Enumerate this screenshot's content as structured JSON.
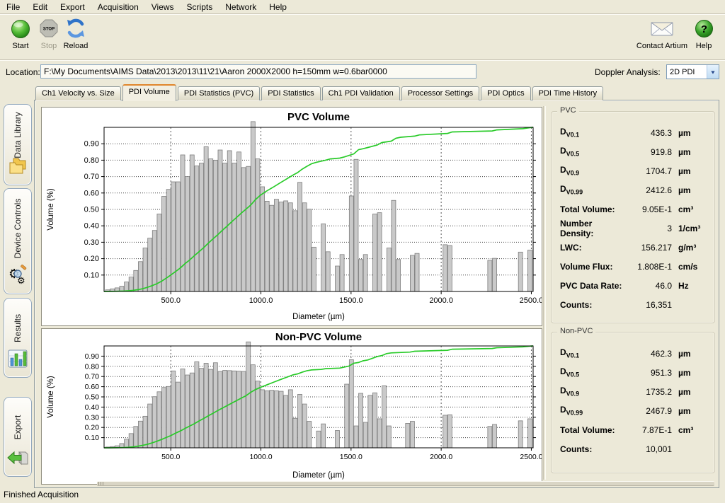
{
  "menu": {
    "items": [
      "File",
      "Edit",
      "Export",
      "Acquisition",
      "Views",
      "Scripts",
      "Network",
      "Help"
    ]
  },
  "toolbar": {
    "start_label": "Start",
    "stop_label": "Stop",
    "reload_label": "Reload",
    "contact_label": "Contact Artium",
    "help_label": "Help",
    "stop_icon_text": "STOP",
    "help_icon_text": "?"
  },
  "location": {
    "label": "Location:",
    "value": "F:\\My Documents\\AIMS Data\\2013\\2013\\11\\21\\Aaron 2000X2000  h=150mm w=0.6bar0000"
  },
  "doppler": {
    "label": "Doppler Analysis:",
    "value": "2D PDI"
  },
  "tabs": {
    "active_index": 1,
    "items": [
      "Ch1 Velocity vs. Size",
      "PDI Volume",
      "PDI Statistics (PVC)",
      "PDI Statistics",
      "Ch1 PDI Validation",
      "Processor Settings",
      "PDI Optics",
      "PDI Time History"
    ]
  },
  "sidebar": {
    "items": [
      {
        "label": "Data Library",
        "icon": "folders-icon"
      },
      {
        "label": "Device Controls",
        "icon": "gears-magnifier-icon"
      },
      {
        "label": "Results",
        "icon": "bar-chart-icon"
      },
      {
        "label": "Export",
        "icon": "green-arrow-box-icon"
      }
    ]
  },
  "panels": {
    "pvc": {
      "title": "PVC",
      "rows": [
        {
          "key": "dv01",
          "label": "D",
          "sub": "V0.1",
          "value": "436.3",
          "unit": "µm"
        },
        {
          "key": "dv05",
          "label": "D",
          "sub": "V0.5",
          "value": "919.8",
          "unit": "µm"
        },
        {
          "key": "dv09",
          "label": "D",
          "sub": "V0.9",
          "value": "1704.7",
          "unit": "µm"
        },
        {
          "key": "dv099",
          "label": "D",
          "sub": "V0.99",
          "value": "2412.6",
          "unit": "µm"
        },
        {
          "key": "total-volume",
          "label": "Total Volume:",
          "value": "9.05E-1",
          "unit": "cm³"
        },
        {
          "key": "number-density",
          "label": "Number Density:",
          "value": "3",
          "unit": "1/cm³"
        },
        {
          "key": "lwc",
          "label": "LWC:",
          "value": "156.217",
          "unit": "g/m³"
        },
        {
          "key": "volume-flux",
          "label": "Volume Flux:",
          "value": "1.808E-1",
          "unit": "cm/s"
        },
        {
          "key": "pvc-data-rate",
          "label": "PVC Data Rate:",
          "value": "46.0",
          "unit": "Hz"
        },
        {
          "key": "counts",
          "label": "Counts:",
          "value": "16,351",
          "unit": ""
        }
      ]
    },
    "non_pvc": {
      "title": "Non-PVC",
      "rows": [
        {
          "key": "dv01",
          "label": "D",
          "sub": "V0.1",
          "value": "462.3",
          "unit": "µm"
        },
        {
          "key": "dv05",
          "label": "D",
          "sub": "V0.5",
          "value": "951.3",
          "unit": "µm"
        },
        {
          "key": "dv09",
          "label": "D",
          "sub": "V0.9",
          "value": "1735.2",
          "unit": "µm"
        },
        {
          "key": "dv099",
          "label": "D",
          "sub": "V0.99",
          "value": "2467.9",
          "unit": "µm"
        },
        {
          "key": "total-volume",
          "label": "Total Volume:",
          "value": "7.87E-1",
          "unit": "cm³"
        },
        {
          "key": "counts",
          "label": "Counts:",
          "value": "10,001",
          "unit": ""
        }
      ]
    }
  },
  "chart_data": [
    {
      "type": "bar",
      "title": "PVC Volume",
      "xlabel": "Diameter (µm)",
      "ylabel": "Volume (%)",
      "xlim": [
        130,
        2510
      ],
      "ylim": [
        0,
        1.0
      ],
      "xticks": [
        500,
        1000,
        1500,
        2000,
        2500
      ],
      "xtick_labels": [
        "500.0",
        "1000.0",
        "1500.0",
        "2000.0",
        "2500.0"
      ],
      "yticks": [
        0.1,
        0.2,
        0.3,
        0.4,
        0.5,
        0.6,
        0.7,
        0.8,
        0.9
      ],
      "grid": true,
      "bar_color": "#c9c9c9",
      "bar_stroke": "#7e7e7e",
      "line_color": "#29cb29",
      "cumulative_note": "green line = normalized cumulative volume fraction, crosses 0.5 near Dv0.5 = 919.8 µm and 0.9 near Dv0.9 = 1704.7 µm",
      "bars": [
        [
          150,
          0.01
        ],
        [
          176,
          0.016
        ],
        [
          202,
          0.022
        ],
        [
          228,
          0.032
        ],
        [
          254,
          0.058
        ],
        [
          280,
          0.088
        ],
        [
          306,
          0.128
        ],
        [
          332,
          0.182
        ],
        [
          358,
          0.265
        ],
        [
          384,
          0.325
        ],
        [
          410,
          0.372
        ],
        [
          436,
          0.472
        ],
        [
          462,
          0.58
        ],
        [
          488,
          0.622
        ],
        [
          514,
          0.668
        ],
        [
          540,
          0.668
        ],
        [
          566,
          0.832
        ],
        [
          592,
          0.7
        ],
        [
          618,
          0.832
        ],
        [
          644,
          0.765
        ],
        [
          670,
          0.782
        ],
        [
          696,
          0.882
        ],
        [
          722,
          0.808
        ],
        [
          748,
          0.8
        ],
        [
          774,
          0.862
        ],
        [
          800,
          0.782
        ],
        [
          826,
          0.858
        ],
        [
          852,
          0.782
        ],
        [
          878,
          0.85
        ],
        [
          904,
          0.755
        ],
        [
          930,
          0.762
        ],
        [
          956,
          1.035
        ],
        [
          982,
          0.808
        ],
        [
          1008,
          0.638
        ],
        [
          1034,
          0.55
        ],
        [
          1060,
          0.525
        ],
        [
          1086,
          0.562
        ],
        [
          1112,
          0.545
        ],
        [
          1138,
          0.552
        ],
        [
          1164,
          0.54
        ],
        [
          1190,
          0.492
        ],
        [
          1216,
          0.665
        ],
        [
          1242,
          0.54
        ],
        [
          1268,
          0.502
        ],
        [
          1294,
          0.27
        ],
        [
          1346,
          0.412
        ],
        [
          1372,
          0.242
        ],
        [
          1424,
          0.155
        ],
        [
          1450,
          0.225
        ],
        [
          1502,
          0.582
        ],
        [
          1528,
          0.805
        ],
        [
          1554,
          0.195
        ],
        [
          1580,
          0.225
        ],
        [
          1632,
          0.472
        ],
        [
          1658,
          0.48
        ],
        [
          1710,
          0.265
        ],
        [
          1736,
          0.555
        ],
        [
          1762,
          0.195
        ],
        [
          1840,
          0.22
        ],
        [
          1866,
          0.232
        ],
        [
          2022,
          0.285
        ],
        [
          2048,
          0.28
        ],
        [
          2270,
          0.19
        ],
        [
          2296,
          0.202
        ],
        [
          2440,
          0.24
        ],
        [
          2492,
          0.252
        ]
      ]
    },
    {
      "type": "bar",
      "title": "Non-PVC Volume",
      "xlabel": "Diameter (µm)",
      "ylabel": "Volume (%)",
      "xlim": [
        130,
        2510
      ],
      "ylim": [
        0,
        1.0
      ],
      "xticks": [
        500,
        1000,
        1500,
        2000,
        2500
      ],
      "xtick_labels": [
        "500.0",
        "1000.0",
        "1500.0",
        "2000.0",
        "2500.0"
      ],
      "yticks": [
        0.1,
        0.2,
        0.3,
        0.4,
        0.5,
        0.6,
        0.7,
        0.8,
        0.9
      ],
      "grid": true,
      "bar_color": "#c9c9c9",
      "bar_stroke": "#7e7e7e",
      "line_color": "#29cb29",
      "cumulative_note": "green line = normalized cumulative volume fraction, crosses 0.5 near Dv0.5 = 951.3 µm and 0.9 near Dv0.9 = 1735.2 µm",
      "bars": [
        [
          150,
          0.008
        ],
        [
          176,
          0.012
        ],
        [
          202,
          0.02
        ],
        [
          228,
          0.042
        ],
        [
          254,
          0.085
        ],
        [
          280,
          0.14
        ],
        [
          306,
          0.21
        ],
        [
          332,
          0.262
        ],
        [
          358,
          0.31
        ],
        [
          384,
          0.43
        ],
        [
          410,
          0.502
        ],
        [
          436,
          0.55
        ],
        [
          462,
          0.592
        ],
        [
          488,
          0.602
        ],
        [
          514,
          0.755
        ],
        [
          540,
          0.645
        ],
        [
          566,
          0.775
        ],
        [
          592,
          0.715
        ],
        [
          618,
          0.735
        ],
        [
          644,
          0.845
        ],
        [
          670,
          0.78
        ],
        [
          696,
          0.83
        ],
        [
          722,
          0.77
        ],
        [
          748,
          0.835
        ],
        [
          774,
          0.75
        ],
        [
          800,
          0.76
        ],
        [
          826,
          0.758
        ],
        [
          852,
          0.755
        ],
        [
          878,
          0.752
        ],
        [
          904,
          0.75
        ],
        [
          930,
          1.04
        ],
        [
          956,
          0.815
        ],
        [
          982,
          0.655
        ],
        [
          1008,
          0.57
        ],
        [
          1034,
          0.56
        ],
        [
          1060,
          0.565
        ],
        [
          1086,
          0.56
        ],
        [
          1112,
          0.555
        ],
        [
          1138,
          0.515
        ],
        [
          1164,
          0.57
        ],
        [
          1190,
          0.29
        ],
        [
          1216,
          0.525
        ],
        [
          1242,
          0.43
        ],
        [
          1268,
          0.26
        ],
        [
          1320,
          0.165
        ],
        [
          1346,
          0.235
        ],
        [
          1424,
          0.17
        ],
        [
          1476,
          0.625
        ],
        [
          1502,
          0.865
        ],
        [
          1528,
          0.215
        ],
        [
          1554,
          0.535
        ],
        [
          1580,
          0.25
        ],
        [
          1606,
          0.515
        ],
        [
          1632,
          0.54
        ],
        [
          1658,
          0.285
        ],
        [
          1684,
          0.61
        ],
        [
          1710,
          0.215
        ],
        [
          1814,
          0.24
        ],
        [
          1840,
          0.26
        ],
        [
          2022,
          0.32
        ],
        [
          2048,
          0.325
        ],
        [
          2270,
          0.21
        ],
        [
          2296,
          0.23
        ],
        [
          2440,
          0.265
        ],
        [
          2492,
          0.285
        ]
      ]
    }
  ],
  "status": {
    "text": "Finished Acquisition"
  },
  "colors": {
    "window_bg": "#ece9d8",
    "panel_border": "#919b9c",
    "chart_bg": "#ffffff",
    "bar_fill": "#c9c9c9",
    "bar_stroke": "#7e7e7e",
    "cumulative_green": "#29cb29",
    "active_tab_accent": "#e0862c",
    "start_green": "#3fae2a",
    "help_green": "#2f9e28",
    "reload_blue": "#2f73c9"
  },
  "icons": {
    "start": "green-circle",
    "stop": "stop-octagon",
    "reload": "refresh-arrows",
    "contact": "envelope",
    "help": "question-mark-ball",
    "doppler_arrow": "chevron-down"
  }
}
